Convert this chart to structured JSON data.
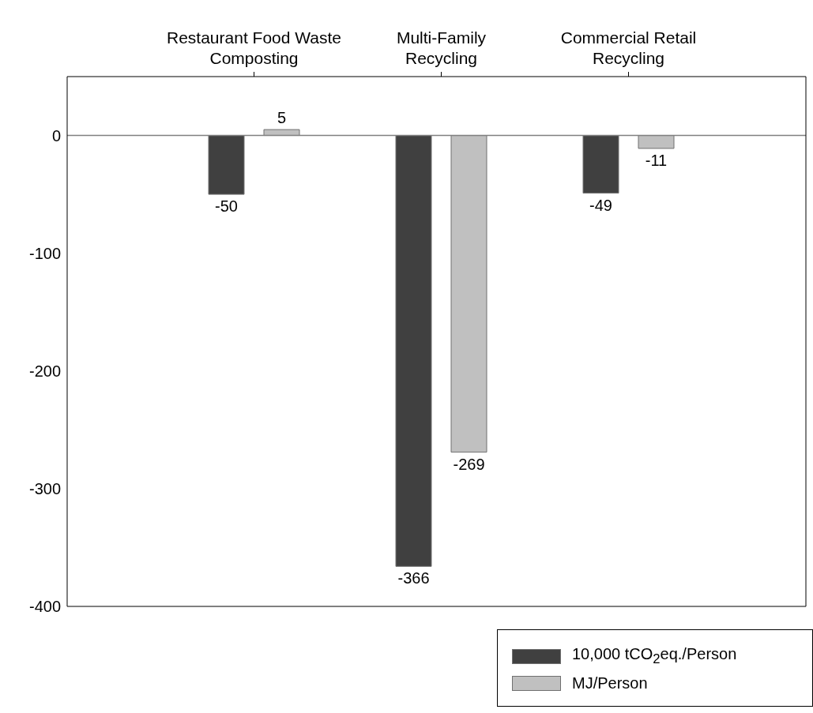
{
  "chart_data": {
    "type": "bar",
    "categories": [
      "Restaurant Food Waste Composting",
      "Multi-Family Recycling",
      "Commercial Retail Recycling"
    ],
    "series": [
      {
        "name": "10,000 tCO$_{2}$eq./Person",
        "color": "#404040",
        "values": [
          -50,
          -366,
          -49
        ]
      },
      {
        "name": "MJ/Person",
        "color": "#c0c0c0",
        "values": [
          5,
          -269,
          -11
        ]
      }
    ],
    "ylim": [
      -400,
      50
    ],
    "yticks": [
      -400,
      -300,
      -200,
      -100,
      0
    ],
    "ref_lines": [
      {
        "axis": "y",
        "value": 0,
        "label": null,
        "color": "#808080"
      }
    ],
    "data_labels": true,
    "grid": false,
    "legend": "bottom right"
  }
}
